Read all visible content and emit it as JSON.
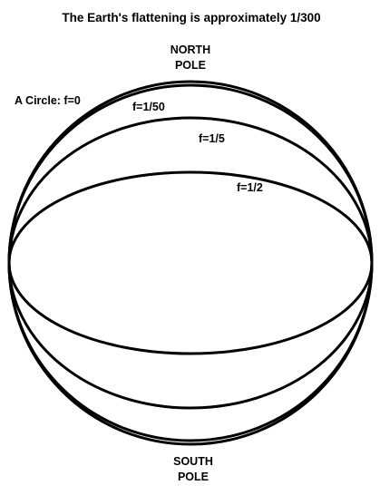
{
  "title": "The Earth's flattening is approximately 1/300",
  "north_pole": {
    "line1": "NORTH",
    "line2": "POLE"
  },
  "south_pole": {
    "line1": "SOUTH",
    "line2": "POLE"
  },
  "ellipses": [
    {
      "label": "A Circle: f=0",
      "flattening": 0
    },
    {
      "label": "f=1/50",
      "flattening": 0.02
    },
    {
      "label": "f=1/5",
      "flattening": 0.2
    },
    {
      "label": "f=1/2",
      "flattening": 0.5
    }
  ],
  "colors": {
    "stroke": "#000000",
    "background": "#ffffff"
  }
}
